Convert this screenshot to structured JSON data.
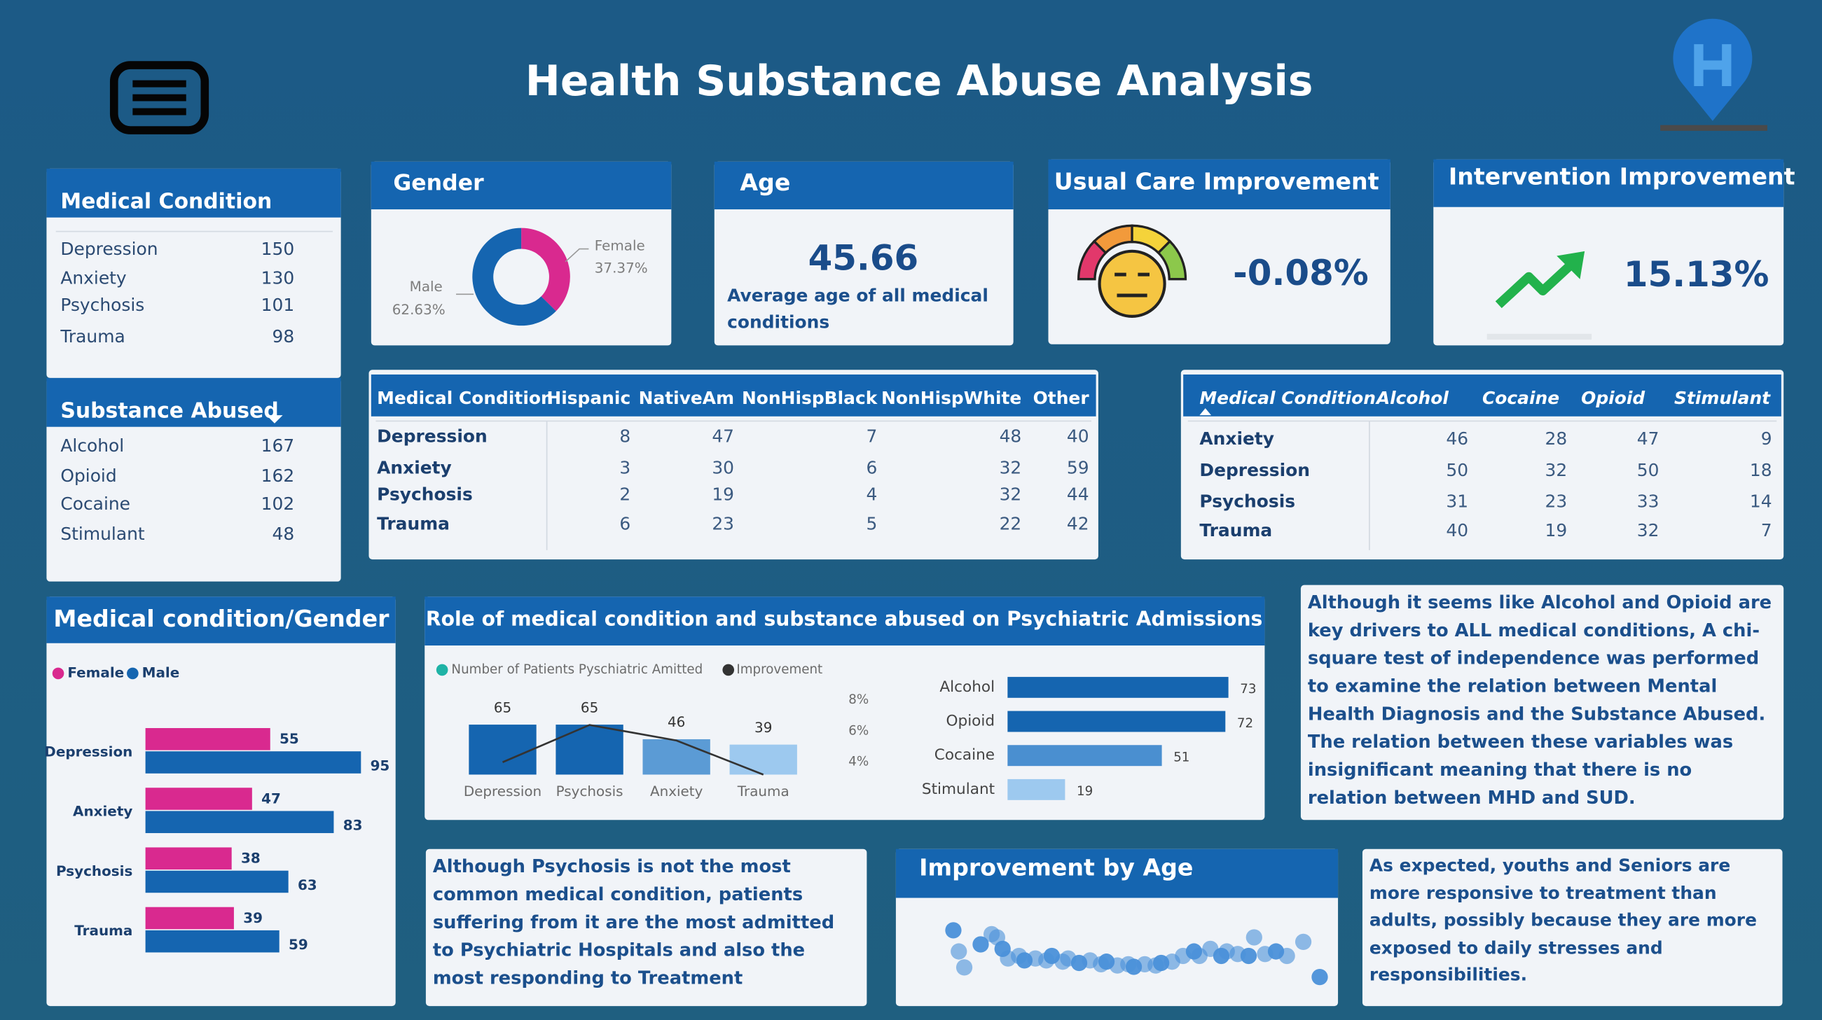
{
  "header": {
    "title": "Health Substance Abuse Analysis"
  },
  "slicers": [
    {
      "title": "Medical Condition",
      "items": [
        {
          "label": "Depression",
          "value": 150
        },
        {
          "label": "Anxiety",
          "value": 130
        },
        {
          "label": "Psychosis",
          "value": 101
        },
        {
          "label": "Trauma",
          "value": 98
        }
      ]
    },
    {
      "title": "Substance Abused",
      "items": [
        {
          "label": "Alcohol",
          "value": 167
        },
        {
          "label": "Opioid",
          "value": 162
        },
        {
          "label": "Cocaine",
          "value": 102
        },
        {
          "label": "Stimulant",
          "value": 48
        }
      ]
    }
  ],
  "cards": [
    {
      "title": "Age",
      "value": 45.66,
      "description": "Average age of all medical conditions"
    },
    {
      "title": "Usual Care Improvement",
      "value": "-0.08%"
    },
    {
      "title": "Intervention Improvement",
      "value": "15.13%"
    }
  ],
  "tables": [
    {
      "columns": [
        "Medical Condition",
        "Hispanic",
        "NativeAm",
        "NonHispBlack",
        "NonHispWhite",
        "Other"
      ],
      "rows": [
        [
          "Depression",
          8,
          47,
          7,
          48,
          40
        ],
        [
          "Anxiety",
          3,
          30,
          6,
          32,
          59
        ],
        [
          "Psychosis",
          2,
          19,
          4,
          32,
          44
        ],
        [
          "Trauma",
          6,
          23,
          5,
          22,
          42
        ]
      ]
    },
    {
      "columns": [
        "Medical Condition",
        "Alcohol",
        "Cocaine",
        "Opioid",
        "Stimulant"
      ],
      "rows": [
        [
          "Anxiety",
          46,
          28,
          47,
          9
        ],
        [
          "Depression",
          50,
          32,
          50,
          18
        ],
        [
          "Psychosis",
          31,
          23,
          33,
          14
        ],
        [
          "Trauma",
          40,
          19,
          32,
          7
        ]
      ]
    }
  ],
  "notes": [
    "Although it seems like Alcohol and Opioid are key drivers to ALL medical conditions, A chi-square test of independence was performed to examine the relation between Mental Health Diagnosis and the Substance Abused. The relation between these variables was insignificant meaning that there is no relation between MHD and SUD.",
    "Although Psychosis is not the most common medical condition, patients suffering from it are the most admitted to Psychiatric Hospitals and also the most responding to Treatment",
    "As expected, youths and Seniors are more responsive to treatment than adults, possibly because they are more exposed to daily stresses and responsibilities."
  ],
  "chart_data": [
    {
      "type": "pie",
      "title": "Gender",
      "categories": [
        "Female",
        "Male"
      ],
      "values": [
        37.37,
        62.63
      ],
      "value_labels": [
        "37.37%",
        "62.63%"
      ],
      "colors": [
        "#d9298f",
        "#1565b0"
      ]
    },
    {
      "type": "hbar",
      "title": "Medical condition/Gender",
      "categories": [
        "Depression",
        "Anxiety",
        "Psychosis",
        "Trauma"
      ],
      "xlim": [
        0,
        100
      ],
      "series": [
        {
          "name": "Female",
          "color": "#d9298f",
          "values": [
            55,
            47,
            38,
            39
          ]
        },
        {
          "name": "Male",
          "color": "#1565b0",
          "values": [
            95,
            83,
            63,
            59
          ]
        }
      ]
    },
    {
      "type": "combo",
      "title": "Role of medical condition and substance abused on Psychiatric Admissions",
      "categories": [
        "Depression",
        "Psychosis",
        "Anxiety",
        "Trauma"
      ],
      "ylim": [
        0,
        115
      ],
      "y2lim": [
        3.2,
        8.9
      ],
      "y2ticks": [
        {
          "value": 8,
          "label": "8%"
        },
        {
          "value": 6,
          "label": "6%"
        },
        {
          "value": 4,
          "label": "4%"
        }
      ],
      "series": [
        {
          "name": "Number of Patients Pyschiatric Amitted",
          "color": "#1fb3a6",
          "colors": [
            "#1565b0",
            "#1565b0",
            "#5b9bd5",
            "#9dc9ef"
          ],
          "values": [
            65,
            65,
            46,
            39
          ]
        },
        {
          "name": "Improvement",
          "axis": "y2",
          "color": "#333333",
          "values": [
            4.0,
            6.4,
            5.4,
            3.2
          ]
        }
      ]
    },
    {
      "type": "bar-h-single",
      "categories": [
        "Alcohol",
        "Opioid",
        "Cocaine",
        "Stimulant"
      ],
      "values": [
        73,
        72,
        51,
        19
      ],
      "colors": [
        "#1565b0",
        "#1565b0",
        "#4a8fd0",
        "#9dc9ef"
      ],
      "xlim": [
        0,
        80
      ]
    },
    {
      "type": "scatter",
      "title": "Improvement by Age",
      "color": "#4a90d9",
      "xlim": [
        15,
        85
      ],
      "ylim": [
        0,
        10
      ],
      "x": [
        17,
        18,
        19,
        22,
        24,
        25,
        26,
        27,
        29,
        30,
        32,
        34,
        35,
        37,
        38,
        40,
        42,
        44,
        45,
        47,
        49,
        50,
        52,
        54,
        55,
        57,
        59,
        61,
        62,
        64,
        66,
        67,
        69,
        71,
        72,
        74,
        76,
        78,
        81,
        84
      ],
      "values": [
        8.2,
        4.9,
        2.4,
        6.0,
        7.6,
        7.1,
        5.3,
        3.8,
        4.2,
        3.5,
        3.8,
        3.5,
        4.2,
        3.3,
        3.8,
        3.1,
        3.5,
        2.9,
        3.3,
        2.7,
        2.9,
        2.5,
        2.9,
        2.7,
        3.1,
        3.3,
        4.2,
        4.9,
        4.2,
        5.3,
        4.2,
        4.9,
        4.5,
        4.2,
        7.1,
        4.5,
        4.9,
        4.2,
        6.4,
        0.9
      ]
    }
  ]
}
